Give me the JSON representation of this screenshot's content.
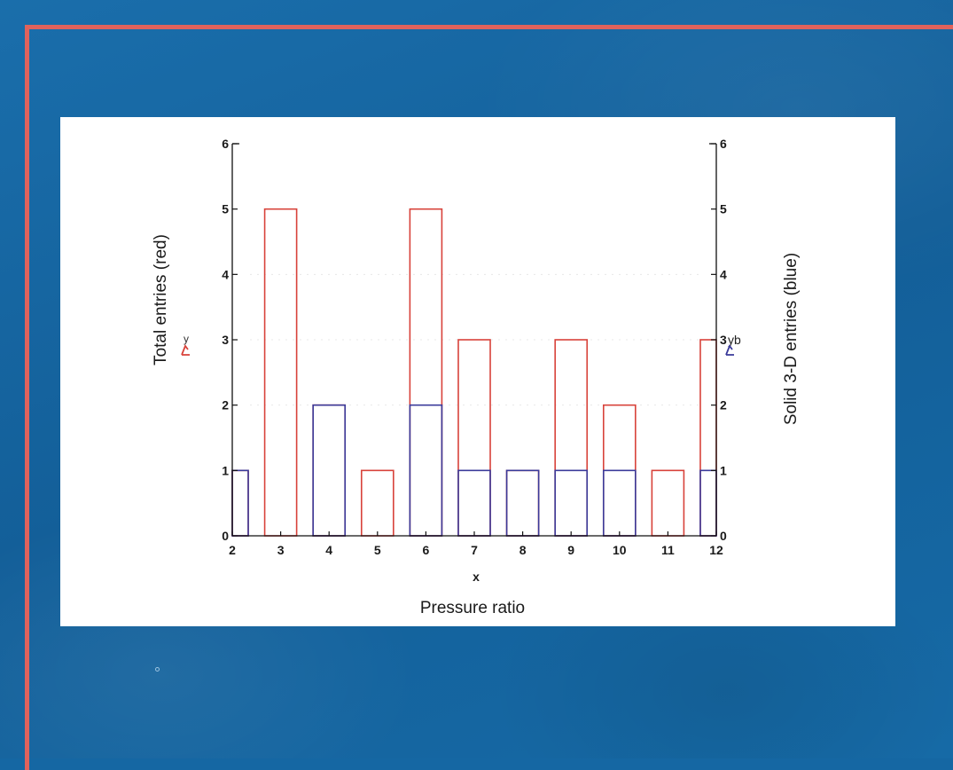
{
  "chart_data": {
    "type": "bar",
    "x": [
      2,
      3,
      4,
      5,
      6,
      7,
      8,
      9,
      10,
      11,
      12
    ],
    "x_tick_labels": [
      "2",
      "3",
      "4",
      "5",
      "6",
      "7",
      "8",
      "9",
      "10",
      "11",
      "12"
    ],
    "series": [
      {
        "name": "Total entries (red)",
        "color": "#d8423a",
        "values": [
          1,
          5,
          2,
          1,
          5,
          3,
          1,
          3,
          2,
          1,
          3
        ]
      },
      {
        "name": "Solid 3-D entries (blue)",
        "color": "#3a3a9a",
        "values": [
          1,
          0,
          2,
          0,
          2,
          1,
          1,
          1,
          1,
          0,
          1
        ]
      }
    ],
    "xvar": "x",
    "xlabel": "Pressure ratio",
    "ylabel_left": "Total entries (red)",
    "ylabel_right": "Solid 3-D entries (blue)",
    "left_marker": "y",
    "right_marker": "yb",
    "ylim": [
      0,
      6
    ],
    "xlim": [
      2,
      12
    ],
    "y_ticks": [
      0,
      1,
      2,
      3,
      4,
      5,
      6
    ],
    "grid": false
  }
}
